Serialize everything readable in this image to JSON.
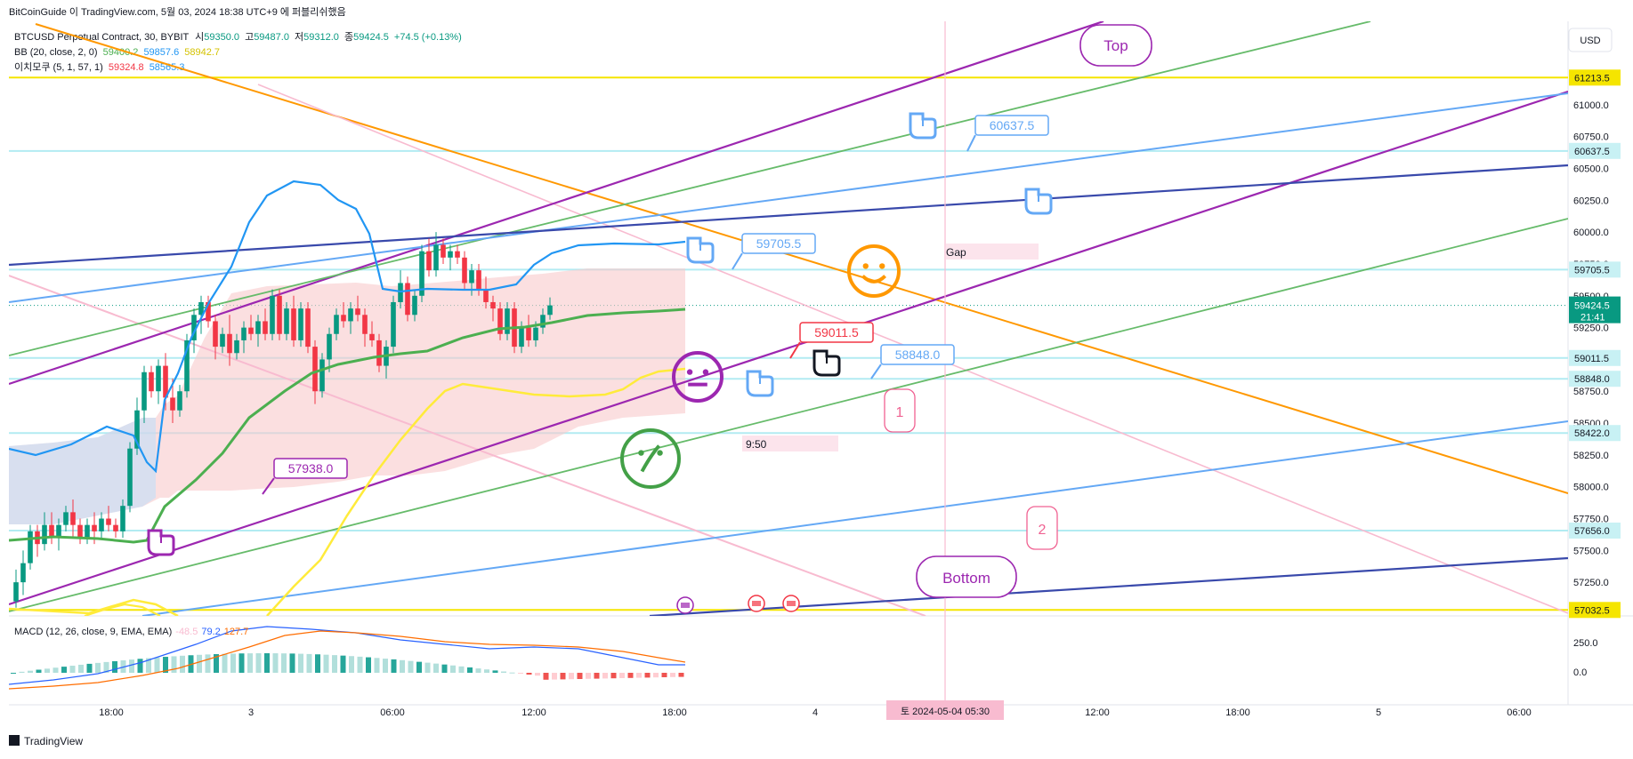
{
  "header": {
    "attribution": "BitCoinGuide 이 TradingView.com, 5월 03, 2024 18:38 UTC+9 에 퍼블리쉬했음",
    "symbol": "BTCUSD Perpetual Contract, 30, BYBIT",
    "ohlc": {
      "o_label": "시",
      "o_value": "59350.0",
      "h_label": "고",
      "h_value": "59487.0",
      "l_label": "저",
      "l_value": "59312.0",
      "c_label": "종",
      "c_value": "59424.5",
      "change": "+74.5 (+0.13%)"
    },
    "bb": {
      "label": "BB (20, close, 2, 0)",
      "basis": "59400.2",
      "upper": "59857.6",
      "lower": "58942.7"
    },
    "ichimoku": {
      "label": "이치모쿠 (5, 1, 57, 1)",
      "v1": "59324.8",
      "v2": "58565.3"
    },
    "currency_button": "USD"
  },
  "macd": {
    "label": "MACD (12, 26, close, 9, EMA, EMA)",
    "hist": "-48.5",
    "macd": "79.2",
    "signal": "127.7"
  },
  "annotations": {
    "top": "Top",
    "bottom": "Bottom",
    "gap": "Gap",
    "time_note": "9:50",
    "callout_60637": "60637.5",
    "callout_59705": "59705.5",
    "callout_59011": "59011.5",
    "callout_58848": "58848.0",
    "callout_57938": "57938.0",
    "wave_1": "1",
    "wave_2": "2"
  },
  "price_axis": {
    "ticks": [
      "61250.0",
      "61000.0",
      "60750.0",
      "60500.0",
      "60250.0",
      "60000.0",
      "59750.0",
      "59500.0",
      "59250.0",
      "59000.0",
      "58750.0",
      "58500.0",
      "58250.0",
      "58000.0",
      "57750.0",
      "57500.0",
      "57250.0"
    ],
    "labels": [
      {
        "text": "61213.5",
        "price": 61213.5,
        "bg": "#f5e500",
        "fg": "#131722"
      },
      {
        "text": "60637.5",
        "price": 60637.5,
        "bg": "#c8f1f4",
        "fg": "#131722"
      },
      {
        "text": "59705.5",
        "price": 59705.5,
        "bg": "#c8f1f4",
        "fg": "#131722"
      },
      {
        "text": "59011.5",
        "price": 59011.5,
        "bg": "#c8f1f4",
        "fg": "#131722"
      },
      {
        "text": "58848.0",
        "price": 58848.0,
        "bg": "#c8f1f4",
        "fg": "#131722"
      },
      {
        "text": "58422.0",
        "price": 58422.0,
        "bg": "#c8f1f4",
        "fg": "#131722"
      },
      {
        "text": "57656.0",
        "price": 57656.0,
        "bg": "#c8f1f4",
        "fg": "#131722"
      },
      {
        "text": "57032.5",
        "price": 57032.5,
        "bg": "#f5e500",
        "fg": "#131722"
      }
    ],
    "last_price": "59424.5",
    "countdown": "21:41"
  },
  "macd_axis": {
    "ticks": [
      "250.0",
      "0.0"
    ]
  },
  "time_axis": {
    "ticks": [
      "18:00",
      "3",
      "06:00",
      "12:00",
      "18:00",
      "4",
      "12:00",
      "18:00",
      "5",
      "06:00"
    ],
    "crosshair": "토 2024-05-04  05:30"
  },
  "footer": {
    "brand": "TradingView"
  },
  "colors": {
    "up": "#089981",
    "down": "#f23645",
    "bb_basis": "#4caf50",
    "bb_upper": "#2196f3",
    "lagging": "#ffeb3b",
    "orange": "#ff9800",
    "purple": "#9c27b0",
    "navy": "#3949ab",
    "lightblue": "#64a8f5",
    "green": "#66bb6a",
    "pink": "#f8bbd0"
  },
  "chart_data": {
    "type": "candlestick",
    "title": "BTCUSD Perpetual Contract, 30, BYBIT",
    "ylabel": "USD",
    "ylim": [
      56950,
      61450
    ],
    "horizontal_levels": [
      61213.5,
      60637.5,
      59705.5,
      59011.5,
      58848.0,
      58422.0,
      57656.0,
      57032.5
    ],
    "candles": [
      [
        57100,
        57350,
        57050,
        57250
      ],
      [
        57250,
        57500,
        57150,
        57400
      ],
      [
        57400,
        57700,
        57350,
        57650
      ],
      [
        57650,
        57700,
        57450,
        57550
      ],
      [
        57550,
        57800,
        57500,
        57700
      ],
      [
        57700,
        57800,
        57550,
        57600
      ],
      [
        57600,
        57750,
        57500,
        57700
      ],
      [
        57700,
        57850,
        57650,
        57800
      ],
      [
        57800,
        57900,
        57600,
        57700
      ],
      [
        57700,
        57750,
        57550,
        57600
      ],
      [
        57600,
        57750,
        57550,
        57700
      ],
      [
        57700,
        57800,
        57550,
        57650
      ],
      [
        57650,
        57800,
        57600,
        57750
      ],
      [
        57750,
        57850,
        57650,
        57700
      ],
      [
        57700,
        57750,
        57600,
        57650
      ],
      [
        57650,
        57900,
        57600,
        57850
      ],
      [
        57850,
        58350,
        57800,
        58300
      ],
      [
        58300,
        58700,
        58250,
        58600
      ],
      [
        58600,
        58950,
        58500,
        58900
      ],
      [
        58900,
        58950,
        58700,
        58750
      ],
      [
        58750,
        59000,
        58650,
        58950
      ],
      [
        58950,
        59050,
        58600,
        58700
      ],
      [
        58700,
        58850,
        58500,
        58600
      ],
      [
        58600,
        58800,
        58550,
        58750
      ],
      [
        58750,
        59200,
        58700,
        59150
      ],
      [
        59150,
        59400,
        59050,
        59350
      ],
      [
        59350,
        59500,
        59200,
        59450
      ],
      [
        59450,
        59500,
        59250,
        59300
      ],
      [
        59300,
        59350,
        59000,
        59100
      ],
      [
        59100,
        59250,
        59050,
        59200
      ],
      [
        59200,
        59350,
        58950,
        59050
      ],
      [
        59050,
        59200,
        59000,
        59150
      ],
      [
        59150,
        59300,
        59050,
        59250
      ],
      [
        59250,
        59350,
        59150,
        59200
      ],
      [
        59200,
        59350,
        59100,
        59300
      ],
      [
        59300,
        59400,
        59150,
        59200
      ],
      [
        59200,
        59550,
        59150,
        59500
      ],
      [
        59500,
        59550,
        59150,
        59200
      ],
      [
        59200,
        59450,
        59150,
        59400
      ],
      [
        59400,
        59500,
        59100,
        59150
      ],
      [
        59150,
        59450,
        59100,
        59400
      ],
      [
        59400,
        59450,
        59050,
        59100
      ],
      [
        59100,
        59150,
        58650,
        58750
      ],
      [
        58750,
        59050,
        58700,
        59000
      ],
      [
        59000,
        59250,
        58900,
        59200
      ],
      [
        59200,
        59400,
        59150,
        59350
      ],
      [
        59350,
        59450,
        59250,
        59300
      ],
      [
        59300,
        59450,
        59200,
        59400
      ],
      [
        59400,
        59500,
        59300,
        59350
      ],
      [
        59350,
        59400,
        59100,
        59200
      ],
      [
        59200,
        59300,
        59100,
        59150
      ],
      [
        59150,
        59200,
        58900,
        58950
      ],
      [
        58950,
        59150,
        58850,
        59100
      ],
      [
        59100,
        59500,
        59050,
        59450
      ],
      [
        59450,
        59700,
        59400,
        59600
      ],
      [
        59600,
        59650,
        59300,
        59350
      ],
      [
        59350,
        59550,
        59300,
        59500
      ],
      [
        59500,
        59900,
        59450,
        59850
      ],
      [
        59850,
        59950,
        59650,
        59700
      ],
      [
        59700,
        60000,
        59650,
        59900
      ],
      [
        59900,
        59950,
        59750,
        59800
      ],
      [
        59800,
        59900,
        59700,
        59850
      ],
      [
        59850,
        59900,
        59750,
        59800
      ],
      [
        59800,
        59850,
        59550,
        59600
      ],
      [
        59600,
        59750,
        59500,
        59700
      ],
      [
        59700,
        59750,
        59500,
        59550
      ],
      [
        59550,
        59650,
        59400,
        59450
      ],
      [
        59450,
        59500,
        59300,
        59400
      ],
      [
        59400,
        59450,
        59150,
        59200
      ],
      [
        59200,
        59450,
        59150,
        59400
      ],
      [
        59400,
        59450,
        59050,
        59100
      ],
      [
        59100,
        59300,
        59050,
        59250
      ],
      [
        59250,
        59350,
        59100,
        59150
      ],
      [
        59150,
        59300,
        59100,
        59250
      ],
      [
        59250,
        59400,
        59200,
        59350
      ],
      [
        59350,
        59487,
        59312,
        59424.5
      ]
    ]
  }
}
